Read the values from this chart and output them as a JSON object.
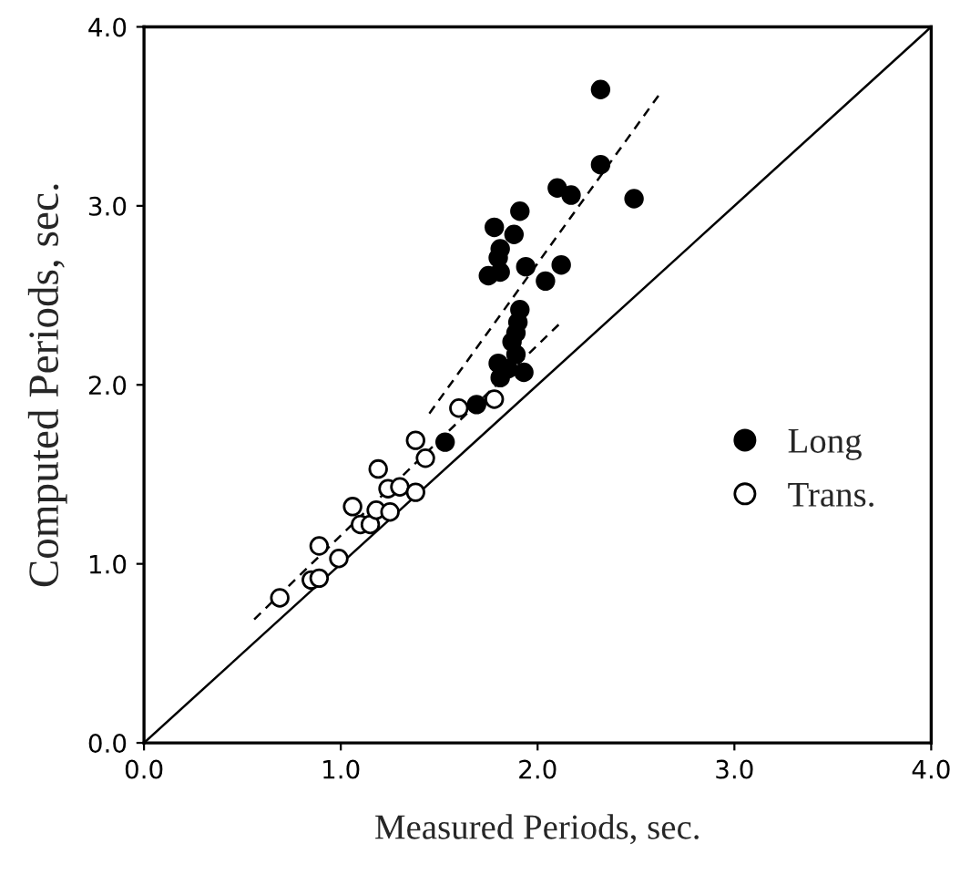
{
  "chart_data": {
    "type": "scatter",
    "xlabel": "Measured Periods, sec.",
    "ylabel": "Computed Periods, sec.",
    "xlim": [
      0,
      4
    ],
    "ylim": [
      0,
      4
    ],
    "xticks": [
      {
        "value": 0,
        "label": "0.0"
      },
      {
        "value": 1,
        "label": "1.0"
      },
      {
        "value": 2,
        "label": "2.0"
      },
      {
        "value": 3,
        "label": "3.0"
      },
      {
        "value": 4,
        "label": "4.0"
      }
    ],
    "yticks": [
      {
        "value": 0,
        "label": "0.0"
      },
      {
        "value": 1,
        "label": "1.0"
      },
      {
        "value": 2,
        "label": "2.0"
      },
      {
        "value": 3,
        "label": "3.0"
      },
      {
        "value": 4,
        "label": "4.0"
      }
    ],
    "grid": false,
    "legend": "right",
    "marker": "circle",
    "series": [
      {
        "name": "Long",
        "color": "#000000",
        "x": [
          2.32,
          2.32,
          2.1,
          2.17,
          2.49,
          1.91,
          1.78,
          1.88,
          1.81,
          1.8,
          1.75,
          1.81,
          1.94,
          2.12,
          2.04,
          1.91,
          1.9,
          1.89,
          1.87,
          1.89,
          1.8,
          1.85,
          1.93,
          1.81,
          1.69,
          1.53
        ],
        "values": [
          3.65,
          3.23,
          3.1,
          3.06,
          3.04,
          2.97,
          2.88,
          2.84,
          2.76,
          2.71,
          2.61,
          2.63,
          2.66,
          2.67,
          2.58,
          2.42,
          2.35,
          2.29,
          2.24,
          2.17,
          2.12,
          2.09,
          2.07,
          2.04,
          1.89,
          1.68
        ]
      },
      {
        "name": "Trans.",
        "color": "#ffffff",
        "x": [
          0.69,
          0.85,
          0.89,
          0.89,
          0.99,
          1.06,
          1.1,
          1.15,
          1.18,
          1.19,
          1.24,
          1.25,
          1.3,
          1.38,
          1.38,
          1.43,
          1.6,
          1.78
        ],
        "values": [
          0.81,
          0.91,
          0.92,
          1.1,
          1.03,
          1.32,
          1.22,
          1.22,
          1.3,
          1.53,
          1.42,
          1.29,
          1.43,
          1.4,
          1.69,
          1.59,
          1.87,
          1.92
        ]
      },
      {
        "type": "line",
        "color": "#000000",
        "line_style": "dashed",
        "marker": "none",
        "x": [
          1.45,
          2.63
        ],
        "values": [
          1.84,
          3.64
        ]
      },
      {
        "type": "line",
        "color": "#000000",
        "line_style": "dashed",
        "marker": "none",
        "x": [
          0.56,
          2.12
        ],
        "values": [
          0.69,
          2.35
        ]
      },
      {
        "type": "line",
        "color": "#000000",
        "line_style": "solid",
        "marker": "none",
        "x": [
          0,
          4
        ],
        "values": [
          0,
          4
        ]
      }
    ]
  }
}
